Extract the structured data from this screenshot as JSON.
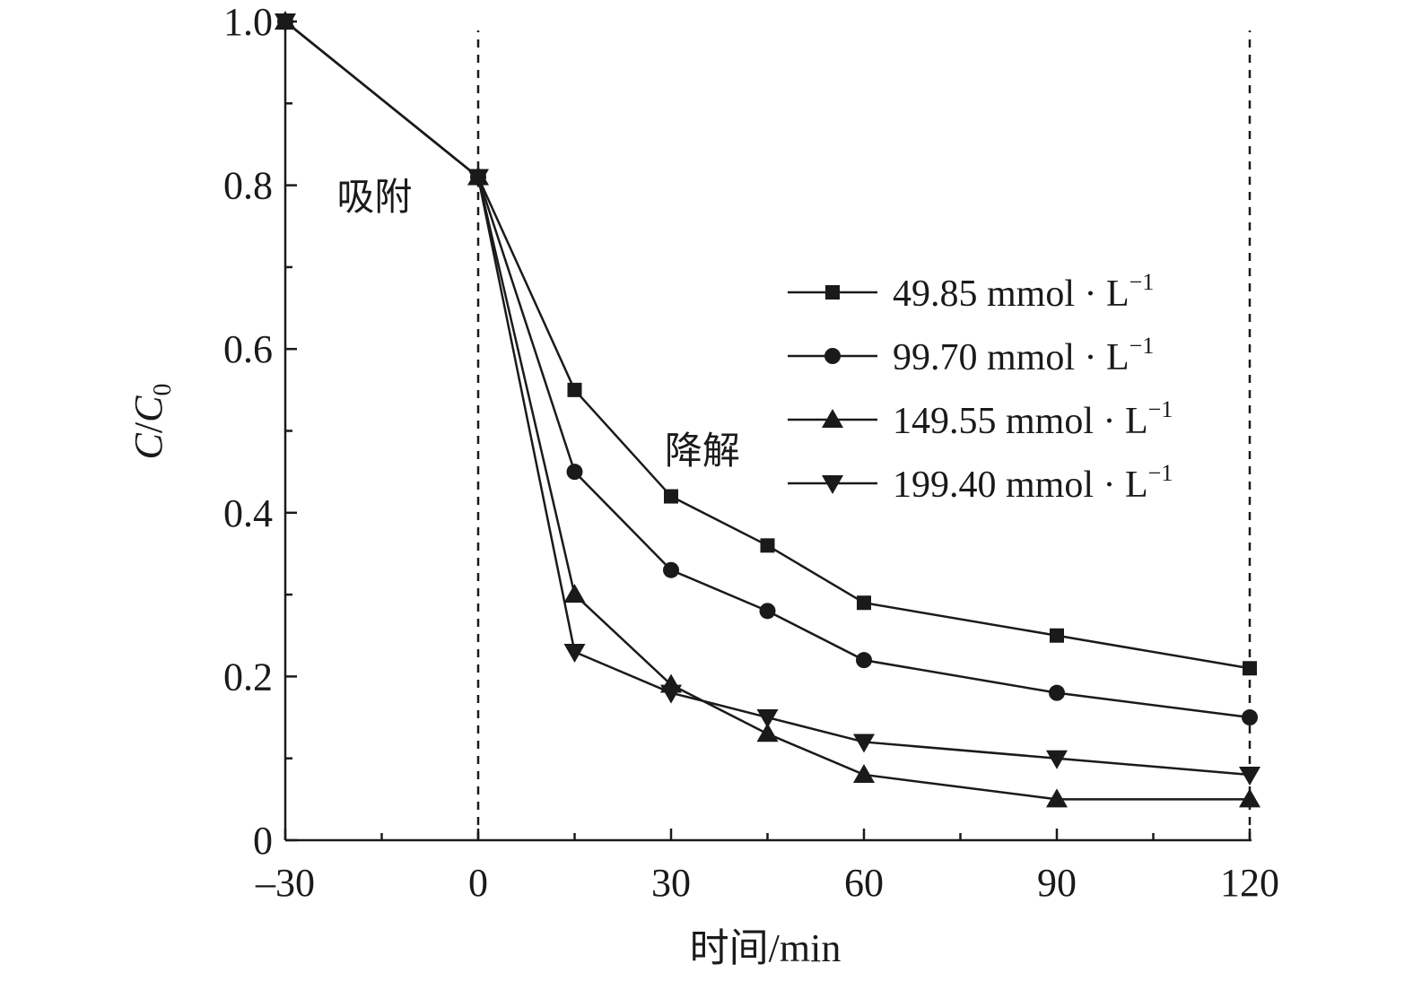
{
  "chart_data": {
    "type": "line",
    "xlabel": "时间/min",
    "ylabel_main": "C",
    "ylabel_slash": "/",
    "ylabel_sub_base": "C",
    "ylabel_sub": "0",
    "xlim": [
      -30,
      120
    ],
    "ylim": [
      0,
      1.0
    ],
    "x_ticks": [
      -30,
      0,
      30,
      60,
      90,
      120
    ],
    "x_tick_labels": [
      "–30",
      "0",
      "30",
      "60",
      "90",
      "120"
    ],
    "y_ticks": [
      0,
      0.2,
      0.4,
      0.6,
      0.8,
      1.0
    ],
    "y_tick_labels": [
      "0",
      "0.2",
      "0.4",
      "0.6",
      "0.8",
      "1.0"
    ],
    "vertical_dashed_lines_at_x": [
      0,
      120
    ],
    "annotations": [
      {
        "text": "吸附",
        "x": -22,
        "y": 0.77
      },
      {
        "text": "降解",
        "x": 29,
        "y": 0.46
      }
    ],
    "legend_position": "center-right",
    "x": [
      -30,
      0,
      15,
      30,
      45,
      60,
      90,
      120
    ],
    "series": [
      {
        "name": "49.85 mmol · L",
        "sup": "−1",
        "marker": "square",
        "values": [
          1.0,
          0.81,
          0.55,
          0.42,
          0.36,
          0.29,
          0.25,
          0.21
        ]
      },
      {
        "name": "99.70 mmol · L",
        "sup": "−1",
        "marker": "circle",
        "values": [
          1.0,
          0.81,
          0.45,
          0.33,
          0.28,
          0.22,
          0.18,
          0.15
        ]
      },
      {
        "name": "149.55 mmol · L",
        "sup": "−1",
        "marker": "triangle-up",
        "values": [
          1.0,
          0.81,
          0.3,
          0.19,
          0.13,
          0.08,
          0.05,
          0.05
        ]
      },
      {
        "name": "199.40 mmol · L",
        "sup": "−1",
        "marker": "triangle-down",
        "values": [
          1.0,
          0.81,
          0.23,
          0.18,
          0.15,
          0.12,
          0.1,
          0.08
        ]
      }
    ]
  }
}
